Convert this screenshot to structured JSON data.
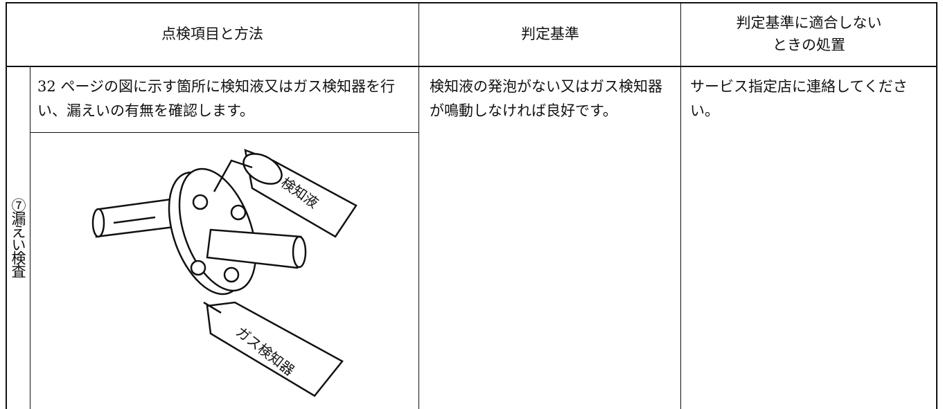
{
  "header": {
    "columns": [
      [
        "点検項目と方法"
      ],
      [
        "判定基準"
      ],
      [
        "判定基準に適合しない",
        "ときの処置"
      ]
    ]
  },
  "section": {
    "label": "⑦漏えい検査"
  },
  "row": {
    "method": "32 ページの図に示す箇所に検知液又はガス検知器を行い、漏えいの有無を確認します。",
    "criterion": "検知液の発泡がない又はガス検知器が鳴動しなければ良好です。",
    "action": "サービス指定店に連絡してください。"
  },
  "figure": {
    "liquid_label": "検知液",
    "detector_label": "ガス検知器"
  }
}
